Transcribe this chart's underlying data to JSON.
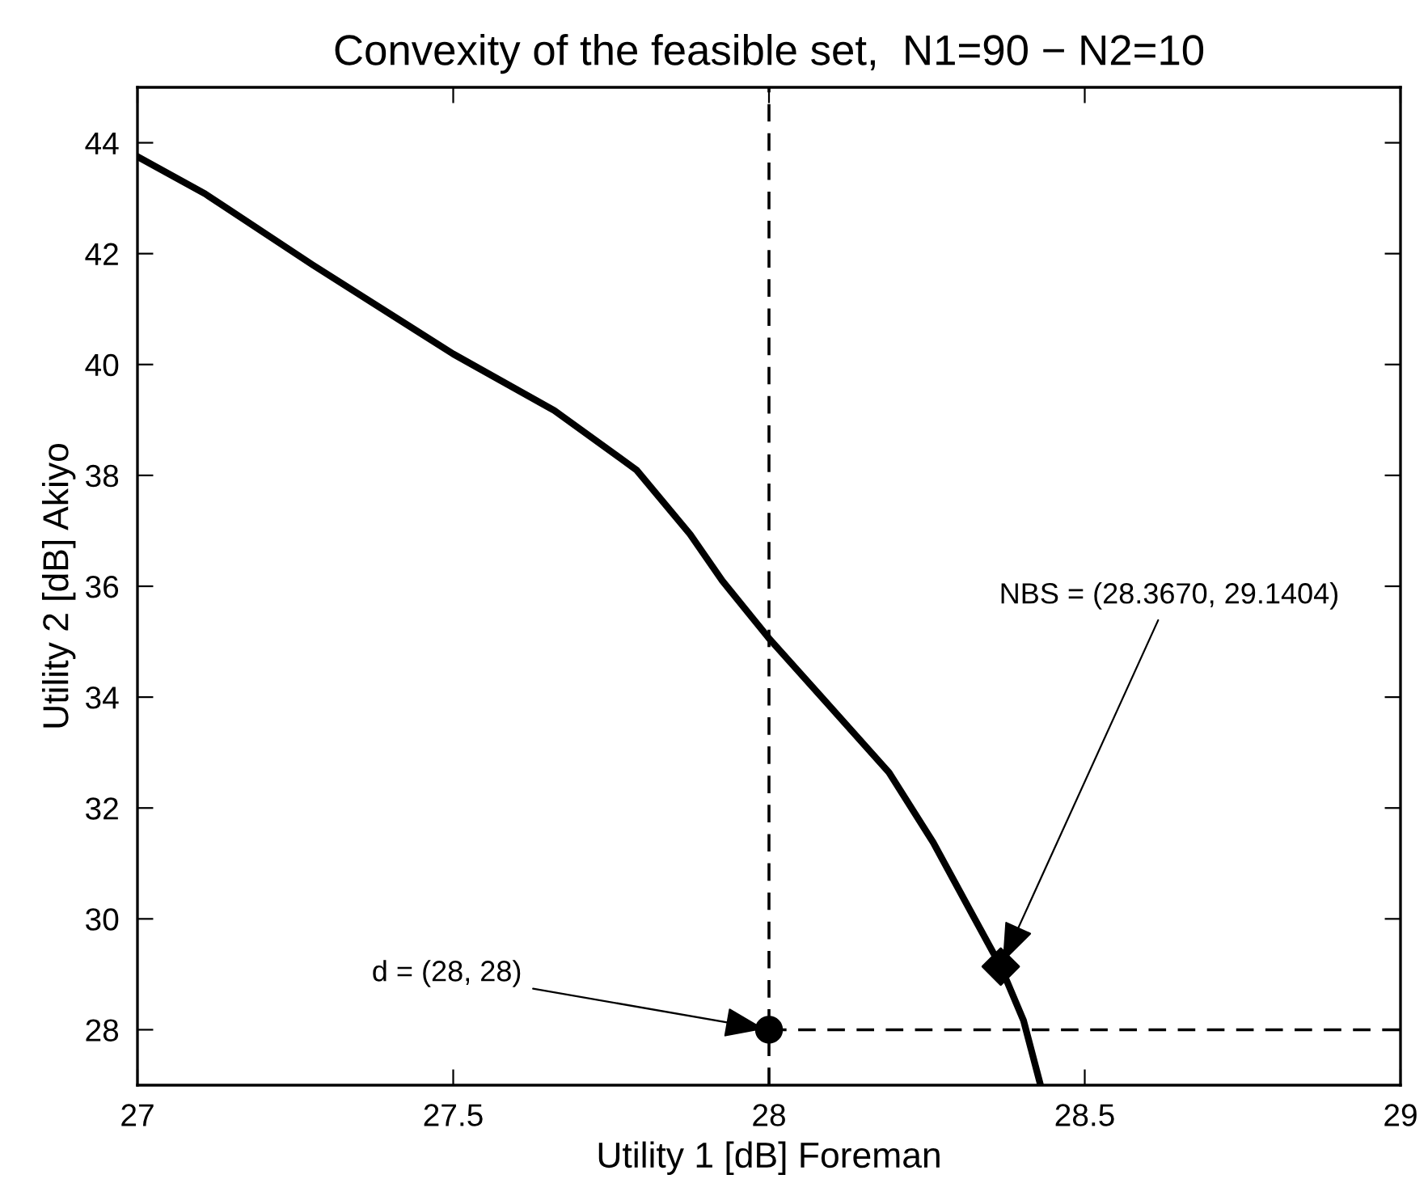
{
  "chart_data": {
    "type": "line",
    "title": "Convexity of the feasible set,  N1=90 − N2=10",
    "xlabel": "Utility 1 [dB] Foreman",
    "ylabel": "Utility 2 [dB] Akiyo",
    "xlim": [
      27,
      29
    ],
    "ylim": [
      27,
      45
    ],
    "xticks": [
      27,
      27.5,
      28,
      28.5,
      29
    ],
    "yticks": [
      28,
      30,
      32,
      34,
      36,
      38,
      40,
      42,
      44
    ],
    "grid": false,
    "legend": false,
    "series": [
      {
        "color": "#000000",
        "line_style": "solid",
        "marker": "none",
        "x": [
          27,
          27.107,
          27.277,
          27.5,
          27.66,
          27.79,
          27.875,
          27.926,
          28.0,
          28.19,
          28.26,
          28.32,
          28.367,
          28.403,
          28.43
        ],
        "values": [
          43.75,
          43.08,
          41.8,
          40.19,
          39.17,
          38.1,
          36.94,
          36.1,
          35.06,
          32.64,
          31.38,
          30.12,
          29.14,
          28.17,
          27.0
        ]
      },
      {
        "type": "line",
        "color": "#000000",
        "line_style": "dashed",
        "marker": "none",
        "x": [
          28,
          29
        ],
        "values": [
          28,
          28
        ]
      },
      {
        "type": "scatter",
        "color": "#000000",
        "marker": "circle",
        "x": [
          28
        ],
        "values": [
          28
        ]
      },
      {
        "type": "scatter",
        "color": "#000000",
        "marker": "diamond",
        "x": [
          28.367
        ],
        "values": [
          29.1404
        ]
      }
    ],
    "ref_lines": [
      {
        "axis": "x",
        "value": 28,
        "line_style": "dashed",
        "color": "#000000"
      }
    ],
    "annotations": [
      {
        "text": "d = (28, 28)",
        "x": 28,
        "y": 28
      },
      {
        "text": "NBS = (28.3670, 29.1404)",
        "x": 28.367,
        "y": 29.1404
      }
    ]
  }
}
